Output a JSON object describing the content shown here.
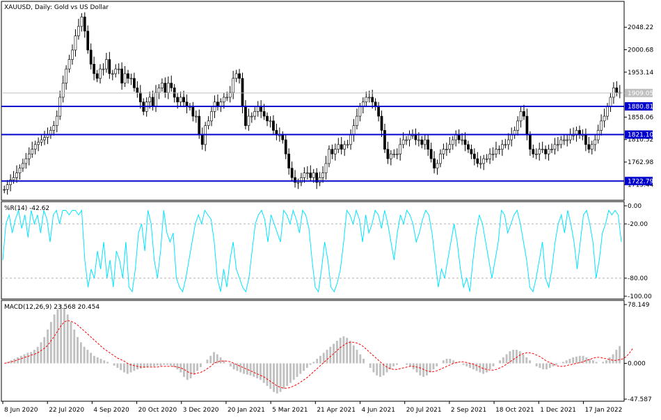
{
  "chart_data": [
    {
      "type": "candlestick",
      "title": "XAUUSD, Daily:  Gold vs US Dollar",
      "ylim": [
        1685,
        2100
      ],
      "y_ticks": [
        "2048.22",
        "2000.68",
        "1953.14",
        "1858.06",
        "1810.52",
        "1762.98",
        "1715.44"
      ],
      "y_tick_values": [
        2048.22,
        2000.68,
        1953.14,
        1858.06,
        1810.52,
        1762.98,
        1715.44
      ],
      "current_price": {
        "label": "1909.05",
        "value": 1909.05
      },
      "horizontal_levels": [
        {
          "label": "1880.81",
          "value": 1880.81
        },
        {
          "label": "1821.10",
          "value": 1821.1
        },
        {
          "label": "1722.79",
          "value": 1722.79
        }
      ],
      "closes_approx": [
        1705,
        1715,
        1725,
        1730,
        1740,
        1750,
        1760,
        1770,
        1780,
        1790,
        1800,
        1805,
        1810,
        1815,
        1820,
        1830,
        1840,
        1860,
        1900,
        1930,
        1960,
        1980,
        2000,
        2030,
        2050,
        2070,
        2040,
        2000,
        1970,
        1950,
        1940,
        1960,
        1960,
        1980,
        1950,
        1950,
        1960,
        1960,
        1930,
        1950,
        1940,
        1940,
        1920,
        1910,
        1890,
        1870,
        1890,
        1900,
        1880,
        1910,
        1920,
        1930,
        1910,
        1930,
        1920,
        1900,
        1890,
        1900,
        1890,
        1880,
        1880,
        1860,
        1860,
        1820,
        1800,
        1840,
        1850,
        1870,
        1890,
        1880,
        1890,
        1900,
        1900,
        1910,
        1940,
        1950,
        1940,
        1880,
        1840,
        1860,
        1860,
        1870,
        1880,
        1870,
        1860,
        1850,
        1850,
        1830,
        1820,
        1820,
        1810,
        1780,
        1750,
        1730,
        1720,
        1720,
        1730,
        1740,
        1740,
        1730,
        1740,
        1720,
        1730,
        1740,
        1760,
        1790,
        1780,
        1790,
        1800,
        1790,
        1800,
        1800,
        1820,
        1840,
        1860,
        1880,
        1890,
        1900,
        1900,
        1890,
        1880,
        1860,
        1830,
        1790,
        1770,
        1780,
        1780,
        1780,
        1800,
        1810,
        1810,
        1820,
        1820,
        1810,
        1810,
        1800,
        1810,
        1790,
        1770,
        1750,
        1760,
        1780,
        1790,
        1790,
        1800,
        1810,
        1820,
        1810,
        1810,
        1800,
        1790,
        1780,
        1770,
        1760,
        1760,
        1770,
        1770,
        1780,
        1780,
        1790,
        1790,
        1800,
        1800,
        1810,
        1820,
        1830,
        1850,
        1870,
        1860,
        1820,
        1790,
        1780,
        1780,
        1790,
        1790,
        1780,
        1790,
        1790,
        1800,
        1800,
        1810,
        1810,
        1810,
        1820,
        1820,
        1830,
        1820,
        1820,
        1800,
        1790,
        1800,
        1810,
        1830,
        1850,
        1860,
        1880,
        1900,
        1920,
        1910,
        1909
      ],
      "x_ticks": [
        "8 Jun 2020",
        "22 Jul 2020",
        "4 Sep 2020",
        "20 Oct 2020",
        "3 Dec 2020",
        "20 Jan 2021",
        "5 Mar 2021",
        "21 Apr 2021",
        "4 Jun 2021",
        "20 Jul 2021",
        "2 Sep 2021",
        "18 Oct 2021",
        "1 Dec 2021",
        "17 Jan 2022"
      ],
      "colors": {
        "candle": "#000000",
        "level": "#0000cc",
        "current": "#c0c0c0"
      }
    },
    {
      "type": "line",
      "title": "%R(14) -42.62",
      "ylim": [
        -100,
        0
      ],
      "y_ticks": [
        "0.00",
        "-20.00",
        "-80.00",
        "-100.00"
      ],
      "y_tick_values": [
        0,
        -20,
        -80,
        -100
      ],
      "levels": [
        -20,
        -80
      ],
      "values_approx": [
        -60,
        -20,
        -10,
        -30,
        -15,
        -5,
        -25,
        -10,
        -35,
        -5,
        -20,
        -10,
        -30,
        -5,
        -15,
        -40,
        -10,
        -5,
        -20,
        -5,
        -5,
        -10,
        -5,
        -5,
        -10,
        -5,
        -60,
        -90,
        -70,
        -80,
        -50,
        -70,
        -40,
        -80,
        -60,
        -90,
        -50,
        -60,
        -80,
        -40,
        -90,
        -95,
        -70,
        -30,
        -20,
        -50,
        -5,
        -20,
        -60,
        -80,
        -50,
        -5,
        -30,
        -40,
        -30,
        -80,
        -90,
        -95,
        -80,
        -60,
        -40,
        -20,
        -10,
        -20,
        -5,
        -10,
        -15,
        -40,
        -80,
        -95,
        -70,
        -90,
        -60,
        -40,
        -70,
        -80,
        -90,
        -95,
        -80,
        -50,
        -20,
        -10,
        -5,
        -15,
        -40,
        -10,
        -20,
        -30,
        -40,
        -5,
        -10,
        -20,
        -5,
        -15,
        -30,
        -5,
        -10,
        -25,
        -60,
        -90,
        -95,
        -70,
        -40,
        -60,
        -90,
        -95,
        -85,
        -70,
        -40,
        -5,
        -10,
        -20,
        -5,
        -15,
        -40,
        -10,
        -30,
        -20,
        -5,
        -10,
        -25,
        -5,
        -20,
        -40,
        -60,
        -30,
        -10,
        -20,
        -5,
        -10,
        -20,
        -40,
        -30,
        -15,
        -5,
        -10,
        -30,
        -60,
        -90,
        -70,
        -80,
        -60,
        -40,
        -20,
        -40,
        -70,
        -90,
        -80,
        -95,
        -60,
        -30,
        -10,
        -20,
        -40,
        -60,
        -80,
        -60,
        -40,
        -5,
        -10,
        -30,
        -20,
        -10,
        -5,
        -20,
        -40,
        -60,
        -90,
        -95,
        -80,
        -60,
        -40,
        -80,
        -90,
        -70,
        -40,
        -20,
        -10,
        -30,
        -5,
        -20,
        -40,
        -70,
        -40,
        -10,
        -5,
        -20,
        -40,
        -80,
        -60,
        -30,
        -20,
        -5,
        -10,
        -5,
        -10,
        -40
      ],
      "color": "#00e5ff"
    },
    {
      "type": "histogram+line",
      "title": "MACD(12,26,9) 23.568 20.454",
      "ylim": [
        -47.587,
        78.149
      ],
      "y_ticks": [
        "78.149",
        "0.000",
        "-47.587"
      ],
      "y_tick_values": [
        78.149,
        0,
        -47.587
      ],
      "macd_approx": [
        0,
        2,
        4,
        6,
        8,
        10,
        12,
        14,
        15,
        18,
        22,
        28,
        35,
        45,
        55,
        65,
        72,
        78,
        74,
        65,
        55,
        45,
        35,
        28,
        22,
        18,
        14,
        10,
        8,
        6,
        4,
        2,
        0,
        -3,
        -6,
        -9,
        -12,
        -14,
        -12,
        -10,
        -8,
        -7,
        -6,
        -5,
        -4,
        -4,
        -3,
        -3,
        -2,
        -2,
        -3,
        -5,
        -8,
        -12,
        -18,
        -22,
        -20,
        -15,
        -10,
        -5,
        0,
        5,
        10,
        15,
        12,
        8,
        4,
        0,
        -4,
        -8,
        -10,
        -12,
        -14,
        -15,
        -16,
        -18,
        -20,
        -22,
        -26,
        -30,
        -34,
        -38,
        -40,
        -38,
        -34,
        -30,
        -26,
        -22,
        -18,
        -14,
        -10,
        -6,
        -2,
        2,
        6,
        10,
        14,
        18,
        22,
        26,
        30,
        34,
        36,
        34,
        30,
        24,
        18,
        12,
        6,
        0,
        -6,
        -12,
        -16,
        -18,
        -16,
        -12,
        -8,
        -4,
        -2,
        0,
        0,
        -2,
        -4,
        -8,
        -12,
        -16,
        -18,
        -16,
        -12,
        -8,
        -4,
        0,
        4,
        6,
        6,
        4,
        2,
        0,
        -2,
        -4,
        -6,
        -8,
        -10,
        -12,
        -14,
        -12,
        -8,
        -4,
        0,
        4,
        8,
        12,
        16,
        18,
        18,
        16,
        12,
        8,
        4,
        0,
        -4,
        -6,
        -8,
        -8,
        -6,
        -4,
        -2,
        0,
        2,
        4,
        6,
        8,
        9,
        10,
        10,
        8,
        6,
        4,
        2,
        0,
        2,
        4,
        8,
        12,
        18,
        23
      ],
      "signal_approx": [
        0,
        1,
        2,
        3,
        5,
        6,
        8,
        9,
        11,
        12,
        14,
        17,
        20,
        24,
        30,
        36,
        43,
        50,
        55,
        57,
        56,
        54,
        51,
        47,
        43,
        39,
        35,
        31,
        27,
        23,
        19,
        16,
        13,
        10,
        7,
        5,
        3,
        0,
        -2,
        -3,
        -4,
        -5,
        -5,
        -5,
        -5,
        -5,
        -5,
        -4,
        -4,
        -4,
        -4,
        -4,
        -5,
        -6,
        -8,
        -11,
        -13,
        -14,
        -13,
        -12,
        -10,
        -7,
        -4,
        0,
        2,
        3,
        3,
        3,
        2,
        0,
        -2,
        -4,
        -6,
        -8,
        -10,
        -12,
        -14,
        -16,
        -18,
        -21,
        -24,
        -27,
        -30,
        -32,
        -33,
        -33,
        -32,
        -30,
        -28,
        -25,
        -22,
        -19,
        -15,
        -11,
        -7,
        -3,
        1,
        5,
        9,
        13,
        17,
        21,
        24,
        27,
        28,
        28,
        27,
        25,
        22,
        18,
        14,
        10,
        6,
        2,
        -2,
        -5,
        -7,
        -8,
        -8,
        -7,
        -6,
        -5,
        -4,
        -4,
        -5,
        -6,
        -8,
        -10,
        -11,
        -11,
        -10,
        -8,
        -6,
        -4,
        -2,
        0,
        1,
        2,
        2,
        1,
        0,
        -1,
        -3,
        -5,
        -7,
        -8,
        -9,
        -9,
        -8,
        -6,
        -4,
        -1,
        2,
        5,
        8,
        11,
        13,
        14,
        14,
        13,
        11,
        9,
        6,
        3,
        1,
        -1,
        -3,
        -4,
        -4,
        -3,
        -2,
        -1,
        0,
        1,
        2,
        4,
        5,
        7,
        8,
        8,
        7,
        6,
        5,
        4,
        4,
        5,
        6,
        9,
        14,
        20
      ],
      "colors": {
        "histogram": "#c0c0c0",
        "signal": "#ff0000"
      }
    }
  ]
}
